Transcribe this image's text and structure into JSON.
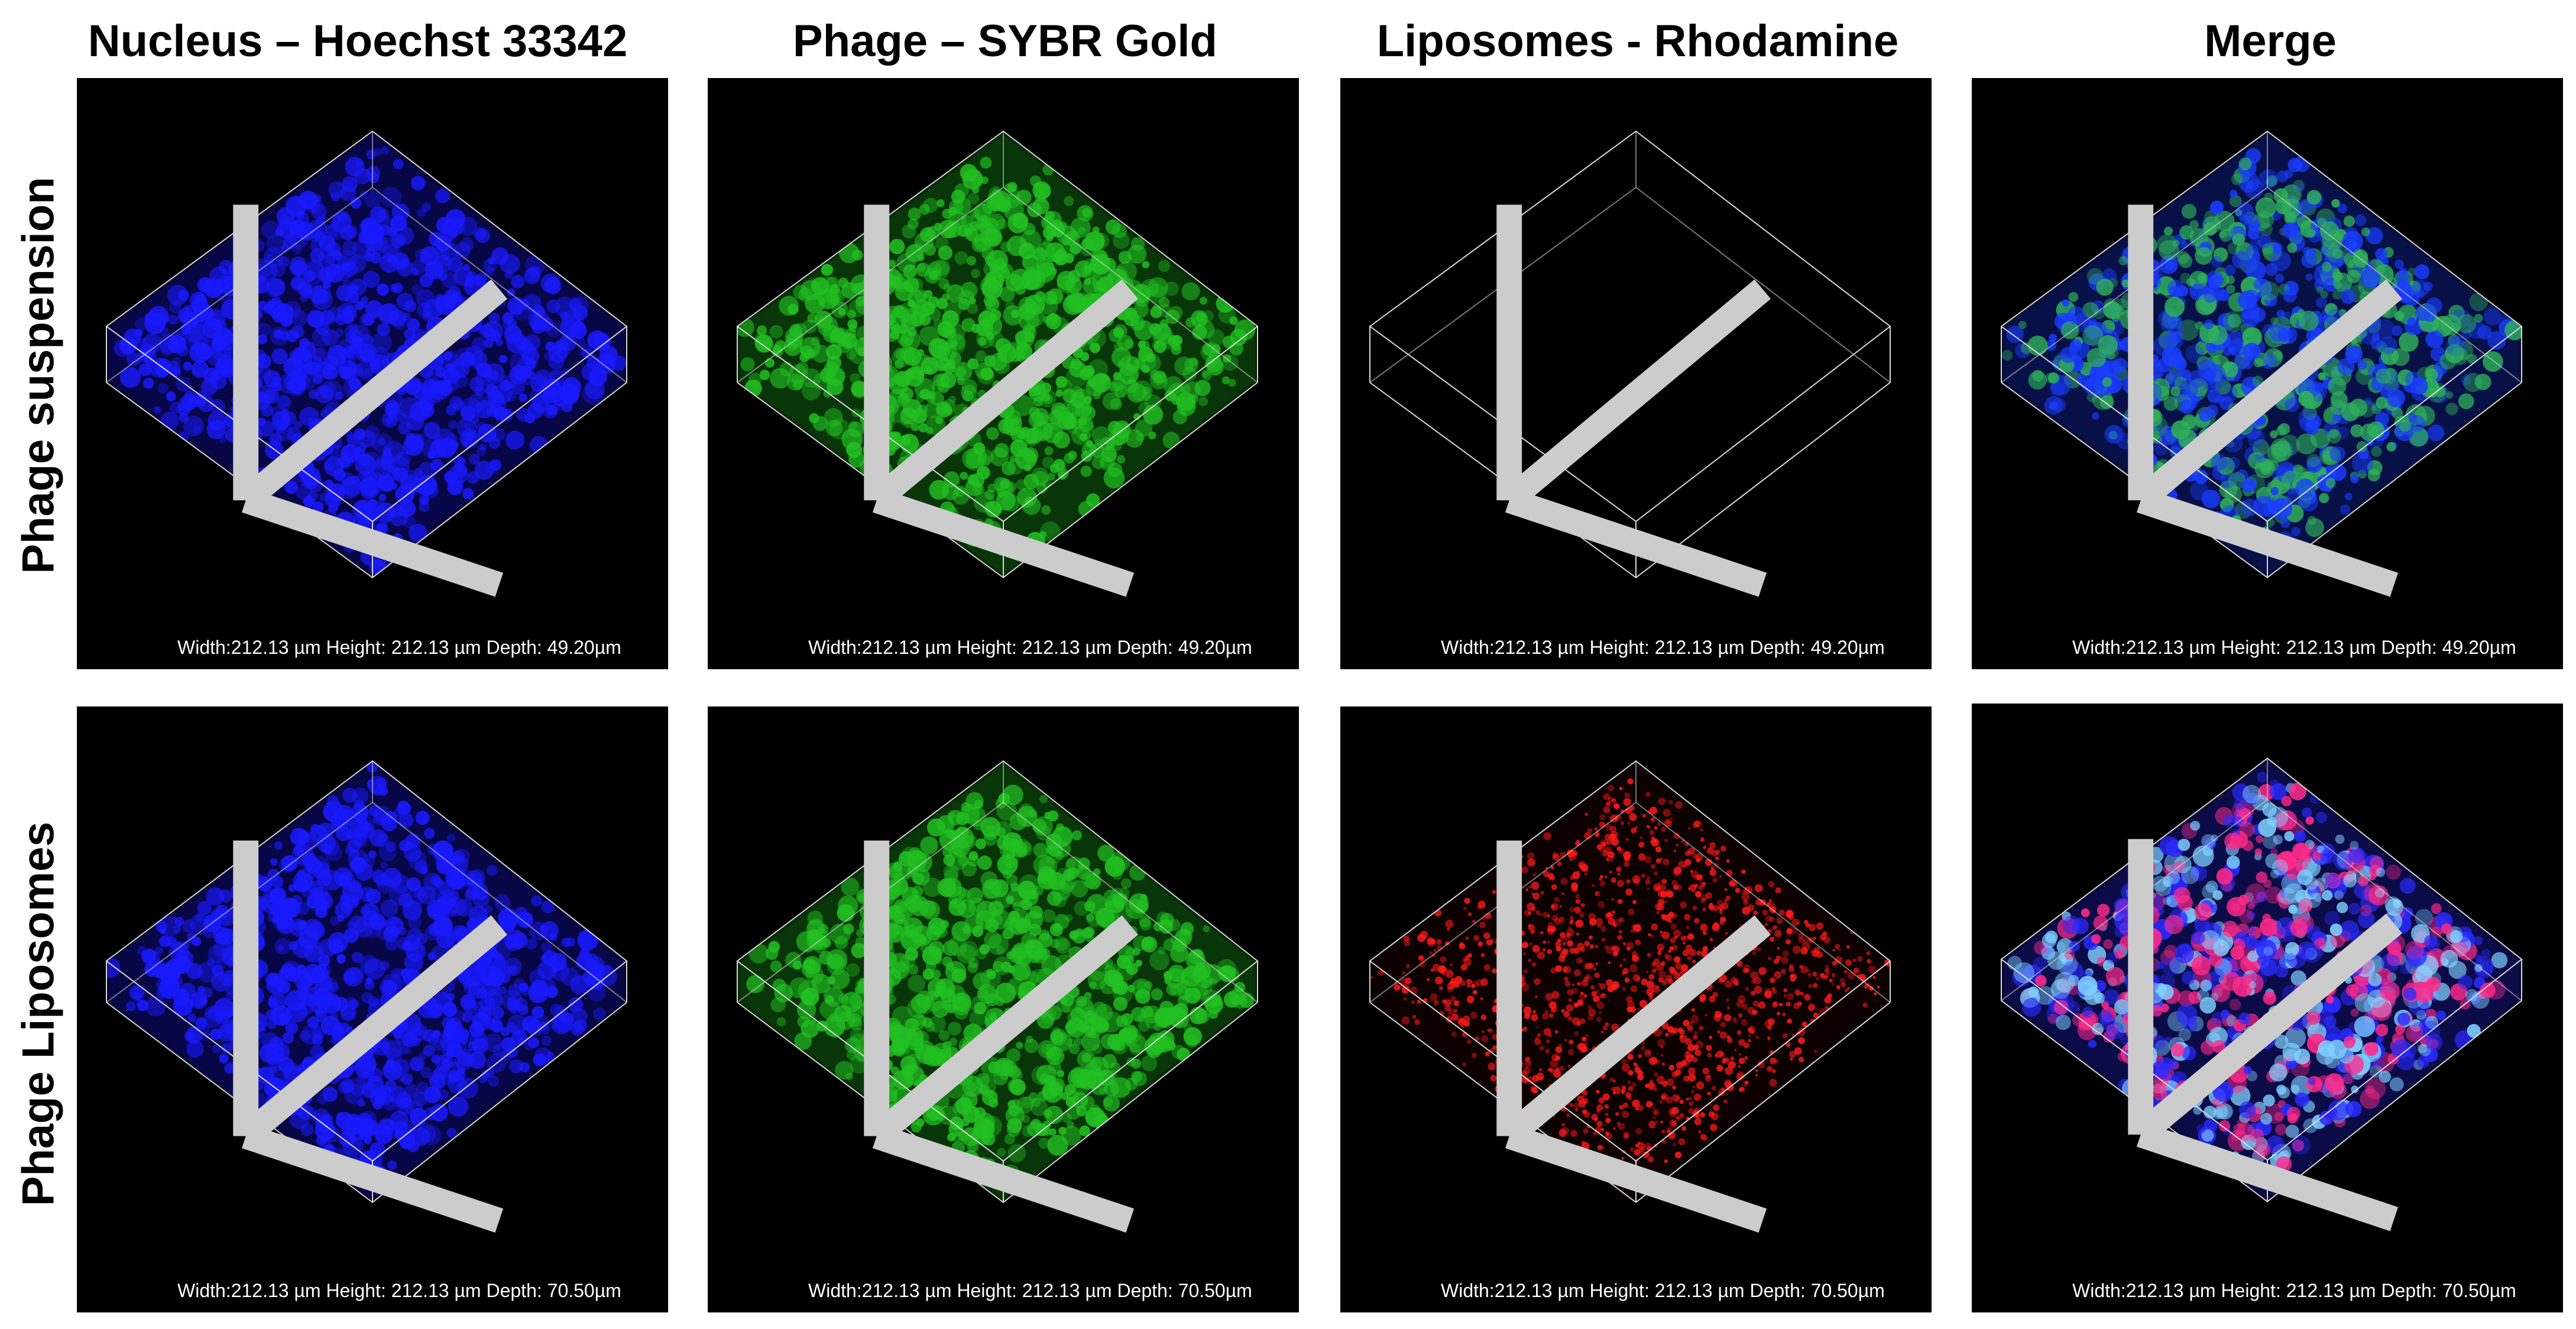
{
  "columns": [
    {
      "label": "Nucleus – Hoechst 33342"
    },
    {
      "label": "Phage – SYBR Gold"
    },
    {
      "label": "Liposomes - Rhodamine"
    },
    {
      "label": "Merge"
    }
  ],
  "rows": [
    {
      "label": "Phage suspension"
    },
    {
      "label": "Phage Liposomes"
    }
  ],
  "panels": [
    [
      {
        "caption": "Width:212.13 µm Height: 212.13 µm Depth: 49.20µm"
      },
      {
        "caption": "Width:212.13 µm Height: 212.13 µm Depth: 49.20µm"
      },
      {
        "caption": "Width:212.13 µm Height: 212.13 µm Depth: 49.20µm"
      },
      {
        "caption": "Width:212.13 µm Height: 212.13 µm Depth: 49.20µm"
      }
    ],
    [
      {
        "caption": "Width:212.13 µm Height: 212.13 µm Depth: 70.50µm"
      },
      {
        "caption": "Width:212.13 µm Height: 212.13 µm Depth: 70.50µm"
      },
      {
        "caption": "Width:212.13 µm Height: 212.13 µm Depth: 70.50µm"
      },
      {
        "caption": "Width:212.13 µm Height: 212.13 µm Depth: 70.50µm"
      }
    ]
  ],
  "colors": {
    "nucleus": "#1a1aff",
    "phage": "#22c022",
    "liposome": "#ff1a1a",
    "merge_row1": [
      "#1a3cff",
      "#2fb05a"
    ],
    "merge_row2": [
      "#2a2aff",
      "#ff2a8a",
      "#7fd0ff"
    ]
  }
}
